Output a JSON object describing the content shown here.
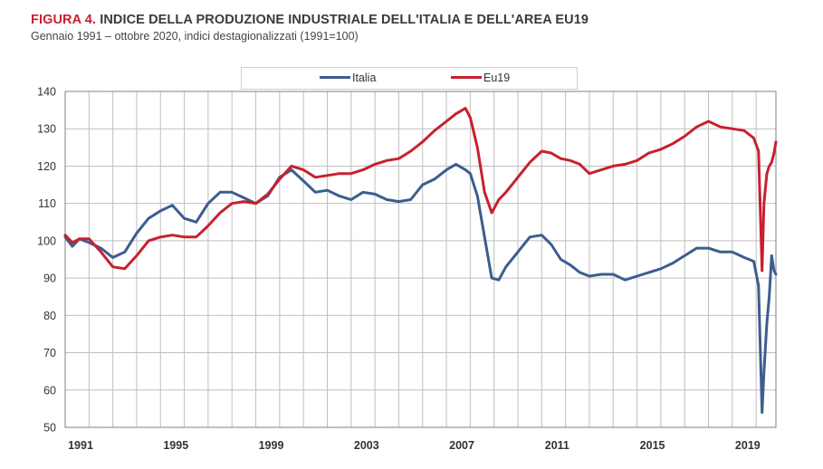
{
  "header": {
    "figure_label": "FIGURA 4.",
    "title": "INDICE DELLA PRODUZIONE INDUSTRIALE DELL'ITALIA E DELL'AREA EU19",
    "subtitle": "Gennaio 1991 – ottobre 2020, indici destagionalizzati (1991=100)"
  },
  "colors": {
    "italia": "#3c5d8f",
    "eu19": "#c8202f",
    "grid": "#bfbfbf",
    "axis": "#7f7f7f"
  },
  "chart_data": {
    "type": "line",
    "title": "INDICE DELLA PRODUZIONE INDUSTRIALE DELL'ITALIA E DELL'AREA EU19",
    "xlabel": "",
    "ylabel": "",
    "ylim": [
      50,
      140
    ],
    "xlim": [
      1991.0,
      2020.83
    ],
    "y_ticks": [
      50,
      60,
      70,
      80,
      90,
      100,
      110,
      120,
      130,
      140
    ],
    "x_tick_labels": [
      "1991",
      "1995",
      "1999",
      "2003",
      "2007",
      "2011",
      "2015",
      "2019"
    ],
    "x_tick_years": [
      1991,
      1995,
      1999,
      2003,
      2007,
      2011,
      2015,
      2019
    ],
    "grid": true,
    "legend": "top-center",
    "series": [
      {
        "name": "Italia",
        "x": [
          1991.0,
          1991.3,
          1991.6,
          1992.0,
          1992.5,
          1993.0,
          1993.5,
          1994.0,
          1994.5,
          1995.0,
          1995.5,
          1996.0,
          1996.5,
          1997.0,
          1997.5,
          1998.0,
          1998.5,
          1999.0,
          1999.5,
          2000.0,
          2000.5,
          2001.0,
          2001.5,
          2002.0,
          2002.5,
          2003.0,
          2003.5,
          2004.0,
          2004.5,
          2005.0,
          2005.5,
          2006.0,
          2006.5,
          2007.0,
          2007.4,
          2007.8,
          2008.0,
          2008.3,
          2008.6,
          2008.9,
          2009.2,
          2009.5,
          2010.0,
          2010.5,
          2011.0,
          2011.4,
          2011.8,
          2012.2,
          2012.6,
          2013.0,
          2013.5,
          2014.0,
          2014.5,
          2015.0,
          2015.5,
          2016.0,
          2016.5,
          2017.0,
          2017.5,
          2018.0,
          2018.5,
          2019.0,
          2019.5,
          2019.9,
          2020.1,
          2020.25,
          2020.33,
          2020.45,
          2020.55,
          2020.65,
          2020.75,
          2020.83
        ],
        "values": [
          101,
          98.5,
          100.5,
          99.5,
          98,
          95.5,
          97,
          102,
          106,
          108,
          109.5,
          106,
          105,
          110,
          113,
          113,
          111.5,
          110,
          112,
          117,
          119,
          116,
          113,
          113.5,
          112,
          111,
          113,
          112.5,
          111,
          110.5,
          111,
          115,
          116.5,
          119,
          120.5,
          119,
          118,
          112,
          101,
          90,
          89.5,
          93,
          97,
          101,
          101.5,
          99,
          95,
          93.5,
          91.5,
          90.5,
          91,
          91,
          89.5,
          90.5,
          91.5,
          92.5,
          94,
          96,
          98,
          98,
          97,
          97,
          95.5,
          94.5,
          88,
          54,
          65,
          78,
          85,
          96,
          92,
          91
        ]
      },
      {
        "name": "Eu19",
        "x": [
          1991.0,
          1991.3,
          1991.6,
          1992.0,
          1992.5,
          1993.0,
          1993.5,
          1994.0,
          1994.5,
          1995.0,
          1995.5,
          1996.0,
          1996.5,
          1997.0,
          1997.5,
          1998.0,
          1998.5,
          1999.0,
          1999.5,
          2000.0,
          2000.5,
          2001.0,
          2001.5,
          2002.0,
          2002.5,
          2003.0,
          2003.5,
          2004.0,
          2004.5,
          2005.0,
          2005.5,
          2006.0,
          2006.5,
          2007.0,
          2007.4,
          2007.8,
          2008.0,
          2008.3,
          2008.6,
          2008.9,
          2009.2,
          2009.5,
          2010.0,
          2010.5,
          2011.0,
          2011.4,
          2011.8,
          2012.2,
          2012.6,
          2013.0,
          2013.5,
          2014.0,
          2014.5,
          2015.0,
          2015.5,
          2016.0,
          2016.5,
          2017.0,
          2017.5,
          2018.0,
          2018.5,
          2019.0,
          2019.5,
          2019.9,
          2020.1,
          2020.25,
          2020.33,
          2020.45,
          2020.55,
          2020.65,
          2020.75,
          2020.83
        ],
        "values": [
          101.5,
          99.5,
          100.5,
          100.5,
          97,
          93,
          92.5,
          96,
          100,
          101,
          101.5,
          101,
          101,
          104,
          107.5,
          110,
          110.5,
          110,
          112.5,
          116.5,
          120,
          119,
          117,
          117.5,
          118,
          118,
          119,
          120.5,
          121.5,
          122,
          124,
          126.5,
          129.5,
          132,
          134,
          135.5,
          133,
          125,
          113,
          107.5,
          111,
          113,
          117,
          121,
          124,
          123.5,
          122,
          121.5,
          120.5,
          118,
          119,
          120,
          120.5,
          121.5,
          123.5,
          124.5,
          126,
          128,
          130.5,
          132,
          130.5,
          130,
          129.5,
          127.5,
          124,
          92,
          110,
          118,
          120,
          121,
          123.5,
          126.5
        ]
      }
    ]
  }
}
